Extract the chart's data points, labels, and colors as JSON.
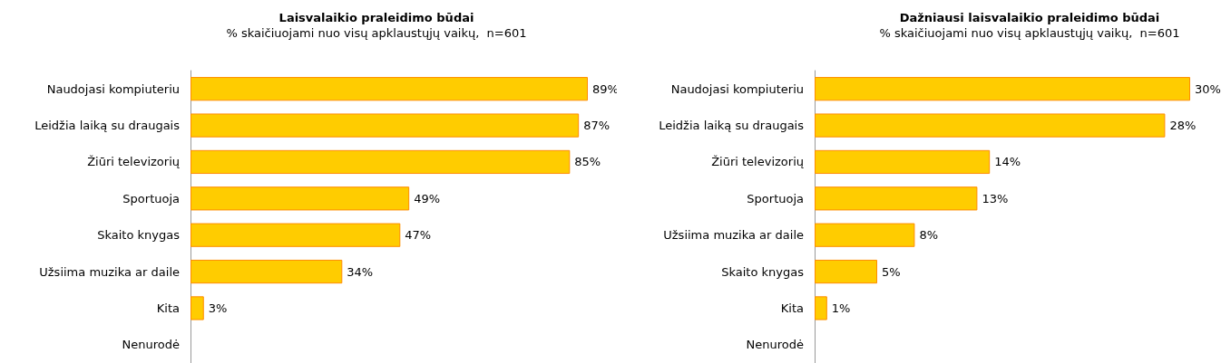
{
  "chart_data": [
    {
      "type": "bar",
      "orientation": "horizontal",
      "title": "Laisvalaikio praleidimo būdai",
      "subtitle": "% skaičiuojami nuo visų apklaustųjų vaikų,  n=601",
      "categories": [
        "Naudojasi kompiuteriu",
        "Leidžia laiką su draugais",
        "Žiūri televizorių",
        "Sportuoja",
        "Skaito knygas",
        "Užsiima muzika ar daile",
        "Kita",
        "Nenurodė"
      ],
      "values": [
        89,
        87,
        85,
        49,
        47,
        34,
        3,
        null
      ],
      "color": "#ffcc00",
      "value_labels": [
        "89%",
        "87%",
        "85%",
        "49%",
        "47%",
        "34%",
        "3%",
        null
      ],
      "tick_labels": "y"
    },
    {
      "type": "bar",
      "orientation": "horizontal",
      "title": "Dažniausi laisvalaikio praleidimo būdai",
      "subtitle": "% skaičiuojami nuo visų apklaustųjų vaikų,  n=601",
      "categories": [
        "Naudojasi kompiuteriu",
        "Leidžia laiką su draugais",
        "Žiūri televizorių",
        "Sportuoja",
        "Užsiima muzika ar daile",
        "Skaito knygas",
        "Kita",
        "Nenurodė"
      ],
      "values": [
        30,
        28,
        14,
        13,
        8,
        5,
        1,
        null
      ],
      "color": "#ffcc00",
      "value_labels": [
        "30%",
        "28%",
        "14%",
        "13%",
        "8%",
        "5%",
        "1%",
        null
      ],
      "tick_labels": "y"
    }
  ]
}
